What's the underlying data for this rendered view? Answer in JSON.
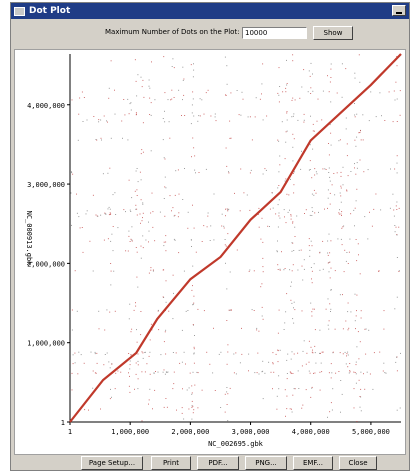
{
  "window": {
    "title": "Dot Plot"
  },
  "controls": {
    "max_dots_label": "Maximum Number of Dots on the Plot:",
    "max_dots_value": "10000",
    "show_label": "Show"
  },
  "chart_data": {
    "type": "scatter",
    "xlabel": "NC_002695.gbk",
    "ylabel": "NC_000913.gbk",
    "xlim": [
      1,
      5500000
    ],
    "ylim": [
      1,
      4640000
    ],
    "x_ticks": [
      "1",
      "1,000,000",
      "2,000,000",
      "3,000,000",
      "4,000,000",
      "5,000,000"
    ],
    "y_ticks": [
      "1",
      "1,000,000",
      "2,000,000",
      "3,000,000",
      "4,000,000"
    ],
    "series": [
      {
        "color": "#c0392b",
        "description_points": [
          [
            1,
            1
          ],
          [
            550000,
            530000
          ],
          [
            1100000,
            870000
          ],
          [
            1450000,
            1300000
          ],
          [
            2000000,
            1800000
          ],
          [
            2500000,
            2080000
          ],
          [
            3000000,
            2550000
          ],
          [
            3500000,
            2900000
          ],
          [
            4000000,
            3550000
          ],
          [
            5000000,
            4250000
          ],
          [
            5500000,
            4640000
          ]
        ]
      }
    ]
  },
  "buttons": {
    "page_setup": "Page Setup...",
    "print": "Print",
    "pdf": "PDF...",
    "png": "PNG...",
    "emf": "EMF...",
    "close": "Close"
  }
}
